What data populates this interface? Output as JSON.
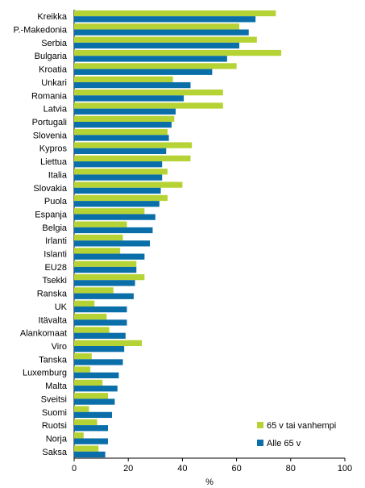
{
  "chart_data": {
    "type": "bar",
    "orientation": "horizontal",
    "categories": [
      "Kreikka",
      "P.-Makedonia",
      "Serbia",
      "Bulgaria",
      "Kroatia",
      "Unkari",
      "Romania",
      "Latvia",
      "Portugali",
      "Slovenia",
      "Kypros",
      "Liettua",
      "Italia",
      "Slovakia",
      "Puola",
      "Espanja",
      "Belgia",
      "Irlanti",
      "Islanti",
      "EU28",
      "Tsekki",
      "Ranska",
      "UK",
      "Itävalta",
      "Alankomaat",
      "Viro",
      "Tanska",
      "Luxemburg",
      "Malta",
      "Sveitsi",
      "Suomi",
      "Ruotsi",
      "Norja",
      "Saksa"
    ],
    "series": [
      {
        "name": "65 v tai vanhempi",
        "color": "#b5d334",
        "values": [
          74.5,
          61,
          67.5,
          76.5,
          60,
          36.5,
          55,
          55,
          37,
          34.5,
          43.5,
          43,
          34.5,
          40,
          34.5,
          26,
          19.5,
          18,
          17,
          23,
          26,
          14.5,
          7.5,
          12,
          13,
          25,
          6.5,
          6,
          10.5,
          12.5,
          5.5,
          8.5,
          3.5,
          9
        ]
      },
      {
        "name": "Alle 65 v",
        "color": "#0a6ea8",
        "values": [
          67,
          64.5,
          61,
          56.5,
          51,
          43,
          40.5,
          37.5,
          36,
          35,
          34,
          32.5,
          32.5,
          32,
          31.5,
          30,
          29,
          28,
          26,
          23,
          22.5,
          22,
          19.5,
          19.5,
          19,
          18.5,
          18,
          16.5,
          16,
          15,
          14,
          12.5,
          12.5,
          11.5
        ]
      }
    ],
    "xlabel": "%",
    "xlim": [
      0,
      100
    ],
    "xticks": [
      0,
      20,
      40,
      60,
      80,
      100
    ],
    "legend_position": "bottom-right",
    "grid": false
  }
}
